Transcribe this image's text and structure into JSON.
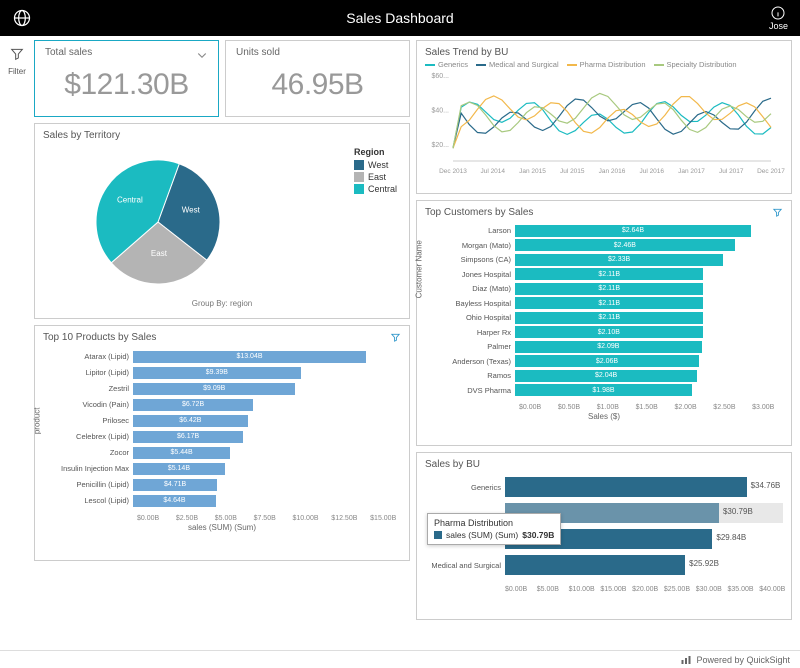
{
  "header": {
    "title": "Sales Dashboard",
    "user_name": "Jose"
  },
  "leftrail": {
    "filter_label": "Filter"
  },
  "kpi": {
    "total_sales": {
      "label": "Total sales",
      "value": "$121.30B"
    },
    "units_sold": {
      "label": "Units sold",
      "value": "46.95B"
    }
  },
  "territory": {
    "title": "Sales by Territory",
    "legend_title": "Region",
    "groupby_text": "Group By: region",
    "slices": [
      {
        "label": "West",
        "value": 30,
        "color": "#2a6a8a"
      },
      {
        "label": "East",
        "value": 28,
        "color": "#b4b4b4"
      },
      {
        "label": "Central",
        "value": 42,
        "color": "#1bbbc1"
      }
    ]
  },
  "top_products": {
    "title": "Top 10 Products by Sales",
    "ylabel": "product",
    "xlabel": "sales (SUM) (Sum)",
    "color": "#6fa6d6",
    "xmax": 15.0,
    "xticks": [
      "$0.00B",
      "$2.50B",
      "$5.00B",
      "$7.50B",
      "$10.00B",
      "$12.50B",
      "$15.00B"
    ],
    "rows": [
      {
        "label": "Atarax (Lipid)",
        "text": "$13.04B",
        "value": 13.04
      },
      {
        "label": "Lipitor (Lipid)",
        "text": "$9.39B",
        "value": 9.39
      },
      {
        "label": "Zestril",
        "text": "$9.09B",
        "value": 9.09
      },
      {
        "label": "Vicodin (Pain)",
        "text": "$6.72B",
        "value": 6.72
      },
      {
        "label": "Prilosec",
        "text": "$6.42B",
        "value": 6.42
      },
      {
        "label": "Celebrex (Lipid)",
        "text": "$6.17B",
        "value": 6.17
      },
      {
        "label": "Zocor",
        "text": "$5.44B",
        "value": 5.44
      },
      {
        "label": "Insulin Injection Max",
        "text": "$5.14B",
        "value": 5.14
      },
      {
        "label": "Penicillin (Lipid)",
        "text": "$4.71B",
        "value": 4.71
      },
      {
        "label": "Lescol (Lipid)",
        "text": "$4.64B",
        "value": 4.64
      }
    ]
  },
  "sales_trend": {
    "title": "Sales Trend by BU",
    "series": [
      {
        "label": "Generics",
        "color": "#1bbbc1"
      },
      {
        "label": "Medical and Surgical",
        "color": "#2a6a8a"
      },
      {
        "label": "Pharma Distribution",
        "color": "#f2b84b"
      },
      {
        "label": "Specialty Distribution",
        "color": "#a8c97f"
      }
    ],
    "yticks": [
      "$60...",
      "$40...",
      "$20..."
    ],
    "xticks": [
      "Dec 2013",
      "Jul 2014",
      "Jan 2015",
      "Jul 2015",
      "Jan 2016",
      "Jul 2016",
      "Jan 2017",
      "Jul 2017",
      "Dec 2017"
    ]
  },
  "top_customers": {
    "title": "Top Customers by Sales",
    "ylabel": "Customer Name",
    "xlabel": "Sales ($)",
    "color": "#1bbbc1",
    "xmax": 3.0,
    "xticks": [
      "$0.00B",
      "$0.50B",
      "$1.00B",
      "$1.50B",
      "$2.00B",
      "$2.50B",
      "$3.00B"
    ],
    "rows": [
      {
        "label": "Larson",
        "text": "$2.64B",
        "value": 2.64
      },
      {
        "label": "Morgan (Mato)",
        "text": "$2.46B",
        "value": 2.46
      },
      {
        "label": "Simpsons (CA)",
        "text": "$2.33B",
        "value": 2.33
      },
      {
        "label": "Jones Hospital",
        "text": "$2.11B",
        "value": 2.11
      },
      {
        "label": "Diaz (Mato)",
        "text": "$2.11B",
        "value": 2.11
      },
      {
        "label": "Bayless Hospital",
        "text": "$2.11B",
        "value": 2.11
      },
      {
        "label": "Ohio Hospital",
        "text": "$2.11B",
        "value": 2.11
      },
      {
        "label": "Harper Rx",
        "text": "$2.10B",
        "value": 2.1
      },
      {
        "label": "Palmer",
        "text": "$2.09B",
        "value": 2.09
      },
      {
        "label": "Anderson (Texas)",
        "text": "$2.06B",
        "value": 2.06
      },
      {
        "label": "Ramos",
        "text": "$2.04B",
        "value": 2.04
      },
      {
        "label": "DVS Pharma",
        "text": "$1.98B",
        "value": 1.98
      }
    ]
  },
  "sales_by_bu": {
    "title": "Sales by BU",
    "xmax": 40.0,
    "xticks": [
      "$0.00B",
      "$5.00B",
      "$10.00B",
      "$15.00B",
      "$20.00B",
      "$25.00B",
      "$30.00B",
      "$35.00B",
      "$40.00B"
    ],
    "rows": [
      {
        "label": "Generics",
        "text": "$34.76B",
        "value": 34.76,
        "color": "#2a6a8a",
        "highlight": false
      },
      {
        "label": "",
        "text": "$30.79B",
        "value": 30.79,
        "color": "#6a93aa",
        "highlight": true
      },
      {
        "label": "",
        "text": "$29.84B",
        "value": 29.84,
        "color": "#2a6a8a",
        "highlight": false
      },
      {
        "label": "Medical and Surgical",
        "text": "$25.92B",
        "value": 25.92,
        "color": "#2a6a8a",
        "highlight": false
      }
    ],
    "tooltip": {
      "title": "Pharma Distribution",
      "series_label": "sales (SUM) (Sum)",
      "value": "$30.79B"
    }
  },
  "footer": {
    "text": "Powered by QuickSight"
  }
}
